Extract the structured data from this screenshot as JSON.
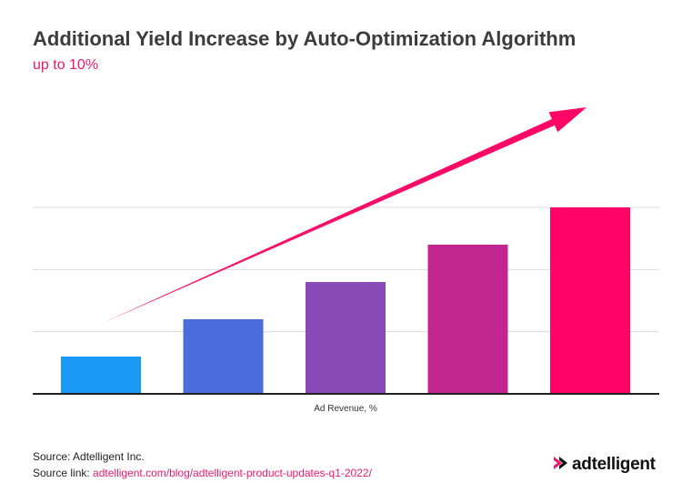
{
  "header": {
    "title": "Additional Yield Increase by Auto-Optimization Algorithm",
    "subtitle": "up to 10%"
  },
  "chart_data": {
    "type": "bar",
    "categories": [
      "",
      "",
      "",
      "",
      ""
    ],
    "values": [
      1,
      2,
      3,
      4,
      5
    ],
    "xlabel": "Ad Revenue, %",
    "ylabel": "",
    "ylim": [
      0,
      5
    ],
    "grid": true,
    "colors": [
      "#1a9af5",
      "#4a6ddb",
      "#8a4ab7",
      "#c2258f",
      "#ff0466"
    ],
    "annotation": {
      "type": "arrow",
      "color": "#ef1a6b"
    }
  },
  "footer": {
    "source_label": "Source: Adtelligent Inc.",
    "link_label": "Source link:",
    "link_url": "adtelligent.com/blog/adtelligent-product-updates-q1-2022/"
  },
  "logo": {
    "text": "adtelligent",
    "icon": "play-arrows-icon"
  }
}
